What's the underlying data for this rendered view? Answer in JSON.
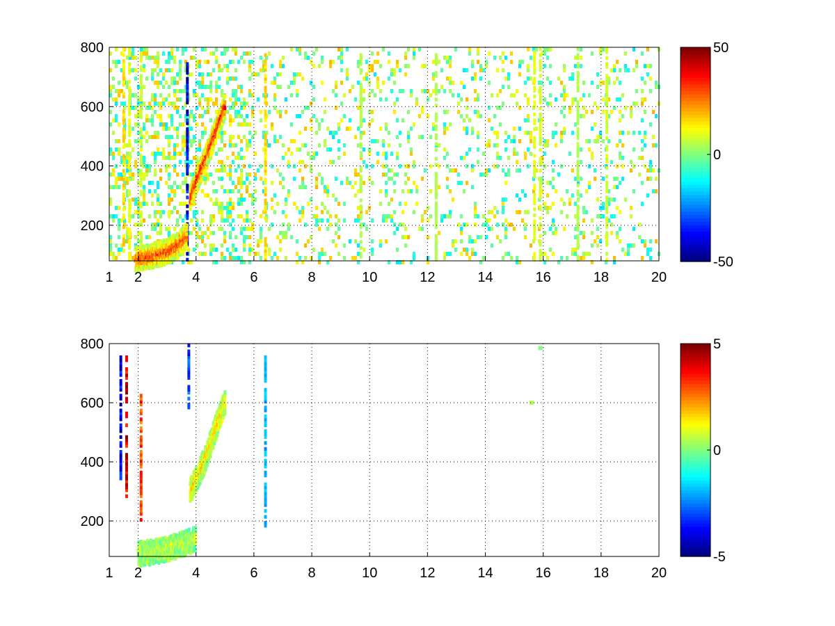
{
  "figure": {
    "background": "#ffffff",
    "colormap": "jet"
  },
  "chart_data": [
    {
      "type": "heatmap",
      "title": "",
      "xlabel": "",
      "ylabel": "",
      "xlim": [
        1,
        20
      ],
      "ylim": [
        80,
        800
      ],
      "xticks": [
        1,
        2,
        4,
        6,
        8,
        10,
        12,
        14,
        16,
        18,
        20
      ],
      "yticks": [
        200,
        400,
        600,
        800
      ],
      "grid": true,
      "colorbar": {
        "clim": [
          -50,
          50
        ],
        "ticks": [
          -50,
          0,
          50
        ]
      },
      "features": {
        "ridges": [
          {
            "x": [
              1.9,
              2.4,
              3.0,
              3.4,
              3.7
            ],
            "y": [
              85,
              95,
              110,
              135,
              165
            ],
            "value": 30
          },
          {
            "x": [
              3.8,
              4.1,
              4.4,
              4.7,
              5.0
            ],
            "y": [
              290,
              370,
              440,
              520,
              600
            ],
            "value": 35
          }
        ],
        "vertical_bands": [
          {
            "x": 1.5,
            "value": 15
          },
          {
            "x": 1.7,
            "value": 10
          },
          {
            "x": 2.1,
            "value": 8
          },
          {
            "x": 3.7,
            "value": -40
          },
          {
            "x": 6.4,
            "value": 15
          },
          {
            "x": 9.7,
            "value": 5
          },
          {
            "x": 12.3,
            "value": 5
          },
          {
            "x": 15.7,
            "value": 10
          },
          {
            "x": 15.9,
            "value": 8
          },
          {
            "x": 17.2,
            "value": 5
          },
          {
            "x": 18.2,
            "value": 8
          }
        ],
        "scatter_density": {
          "x_range": [
            1,
            20
          ],
          "value_range": [
            -15,
            20
          ]
        }
      }
    },
    {
      "type": "heatmap",
      "title": "",
      "xlabel": "",
      "ylabel": "",
      "xlim": [
        1,
        20
      ],
      "ylim": [
        80,
        800
      ],
      "xticks": [
        1,
        2,
        4,
        6,
        8,
        10,
        12,
        14,
        16,
        18,
        20
      ],
      "yticks": [
        200,
        400,
        600,
        800
      ],
      "grid": true,
      "colorbar": {
        "clim": [
          -5,
          5
        ],
        "ticks": [
          -5,
          0,
          5
        ]
      },
      "features": {
        "ridges": [
          {
            "x": [
              2.0,
              2.5,
              3.0,
              3.5,
              4.0
            ],
            "y": [
              88,
              95,
              105,
              120,
              140
            ],
            "value": 0.5
          },
          {
            "x": [
              3.8,
              4.1,
              4.4,
              4.7,
              5.0
            ],
            "y": [
              300,
              360,
              430,
              520,
              600
            ],
            "value": 1.5
          }
        ],
        "vertical_bands": [
          {
            "x": 1.4,
            "y_range": [
              300,
              780
            ],
            "value": -4
          },
          {
            "x": 1.6,
            "y_range": [
              280,
              760
            ],
            "value": 4
          },
          {
            "x": 2.1,
            "y_range": [
              200,
              640
            ],
            "value": 3
          },
          {
            "x": 3.75,
            "y_range": [
              580,
              800
            ],
            "value": -3
          },
          {
            "x": 6.4,
            "y_range": [
              180,
              760
            ],
            "value": -2
          }
        ],
        "isolated_points": [
          {
            "x": 15.6,
            "y": 600,
            "value": 0.5
          },
          {
            "x": 15.9,
            "y": 785,
            "value": 0
          }
        ]
      }
    }
  ]
}
